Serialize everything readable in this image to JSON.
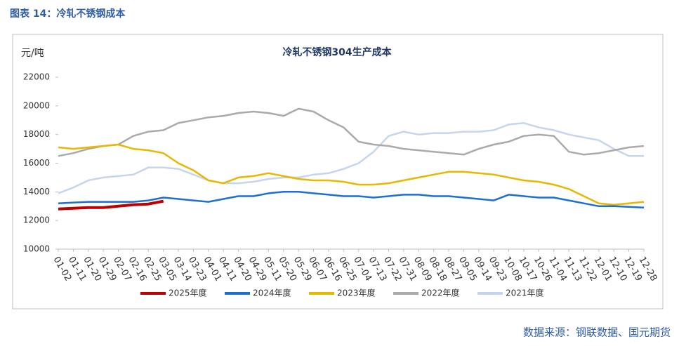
{
  "caption": "图表 14：冷轧不锈钢成本",
  "source": "数据来源：钢联数据、国元期货",
  "chart_data": {
    "type": "line",
    "title": "冷轧不锈钢304生产成本",
    "y_label": "元/吨",
    "categories": [
      "01-02",
      "01-11",
      "01-20",
      "01-29",
      "02-07",
      "02-16",
      "02-25",
      "03-05",
      "03-14",
      "03-23",
      "04-01",
      "04-11",
      "04-20",
      "04-29",
      "05-11",
      "05-20",
      "05-29",
      "06-07",
      "06-16",
      "06-25",
      "07-04",
      "07-13",
      "07-22",
      "07-31",
      "08-09",
      "08-18",
      "08-27",
      "09-05",
      "09-14",
      "09-23",
      "10-08",
      "10-17",
      "10-26",
      "11-04",
      "11-13",
      "11-22",
      "12-01",
      "12-10",
      "12-19",
      "12-28"
    ],
    "ylim": [
      10000,
      22000
    ],
    "yticks": [
      10000,
      12000,
      14000,
      16000,
      18000,
      20000,
      22000
    ],
    "series": [
      {
        "name": "2025年度",
        "color": "#c00000",
        "values": [
          12800,
          12850,
          12900,
          12900,
          13000,
          13100,
          13150,
          13350,
          null,
          null,
          null,
          null,
          null,
          null,
          null,
          null,
          null,
          null,
          null,
          null,
          null,
          null,
          null,
          null,
          null,
          null,
          null,
          null,
          null,
          null,
          null,
          null,
          null,
          null,
          null,
          null,
          null,
          null,
          null,
          null
        ]
      },
      {
        "name": "2024年度",
        "color": "#1f6fd0",
        "values": [
          13200,
          13250,
          13300,
          13300,
          13300,
          13300,
          13400,
          13600,
          13500,
          13400,
          13300,
          13500,
          13700,
          13700,
          13900,
          14000,
          14000,
          13900,
          13800,
          13700,
          13700,
          13600,
          13700,
          13800,
          13800,
          13700,
          13700,
          13600,
          13500,
          13400,
          13800,
          13700,
          13600,
          13600,
          13400,
          13200,
          13000,
          13000,
          12950,
          12900
        ]
      },
      {
        "name": "2023年度",
        "color": "#e6b800",
        "values": [
          17100,
          17000,
          17100,
          17200,
          17300,
          17000,
          16900,
          16700,
          16000,
          15500,
          14800,
          14600,
          15000,
          15100,
          15300,
          15100,
          14900,
          14800,
          14800,
          14700,
          14500,
          14500,
          14600,
          14800,
          15000,
          15200,
          15400,
          15400,
          15300,
          15200,
          15000,
          14800,
          14700,
          14500,
          14200,
          13700,
          13200,
          13100,
          13200,
          13300
        ]
      },
      {
        "name": "2022年度",
        "color": "#aaaaaa",
        "values": [
          16500,
          16700,
          17000,
          17200,
          17300,
          17900,
          18200,
          18300,
          18800,
          19000,
          19200,
          19300,
          19500,
          19600,
          19500,
          19300,
          19800,
          19600,
          19000,
          18500,
          17500,
          17300,
          17200,
          17000,
          16900,
          16800,
          16700,
          16600,
          17000,
          17300,
          17500,
          17900,
          18000,
          17900,
          16800,
          16600,
          16700,
          16900,
          17100,
          17200
        ]
      },
      {
        "name": "2021年度",
        "color": "#c5d5ee",
        "values": [
          13900,
          14300,
          14800,
          15000,
          15100,
          15200,
          15700,
          15700,
          15600,
          15200,
          14800,
          14600,
          14600,
          14700,
          14900,
          15000,
          15000,
          15200,
          15300,
          15600,
          16000,
          16800,
          17900,
          18200,
          18000,
          18100,
          18100,
          18200,
          18200,
          18300,
          18700,
          18800,
          18500,
          18300,
          18000,
          17800,
          17600,
          17000,
          16500,
          16500
        ]
      }
    ]
  }
}
